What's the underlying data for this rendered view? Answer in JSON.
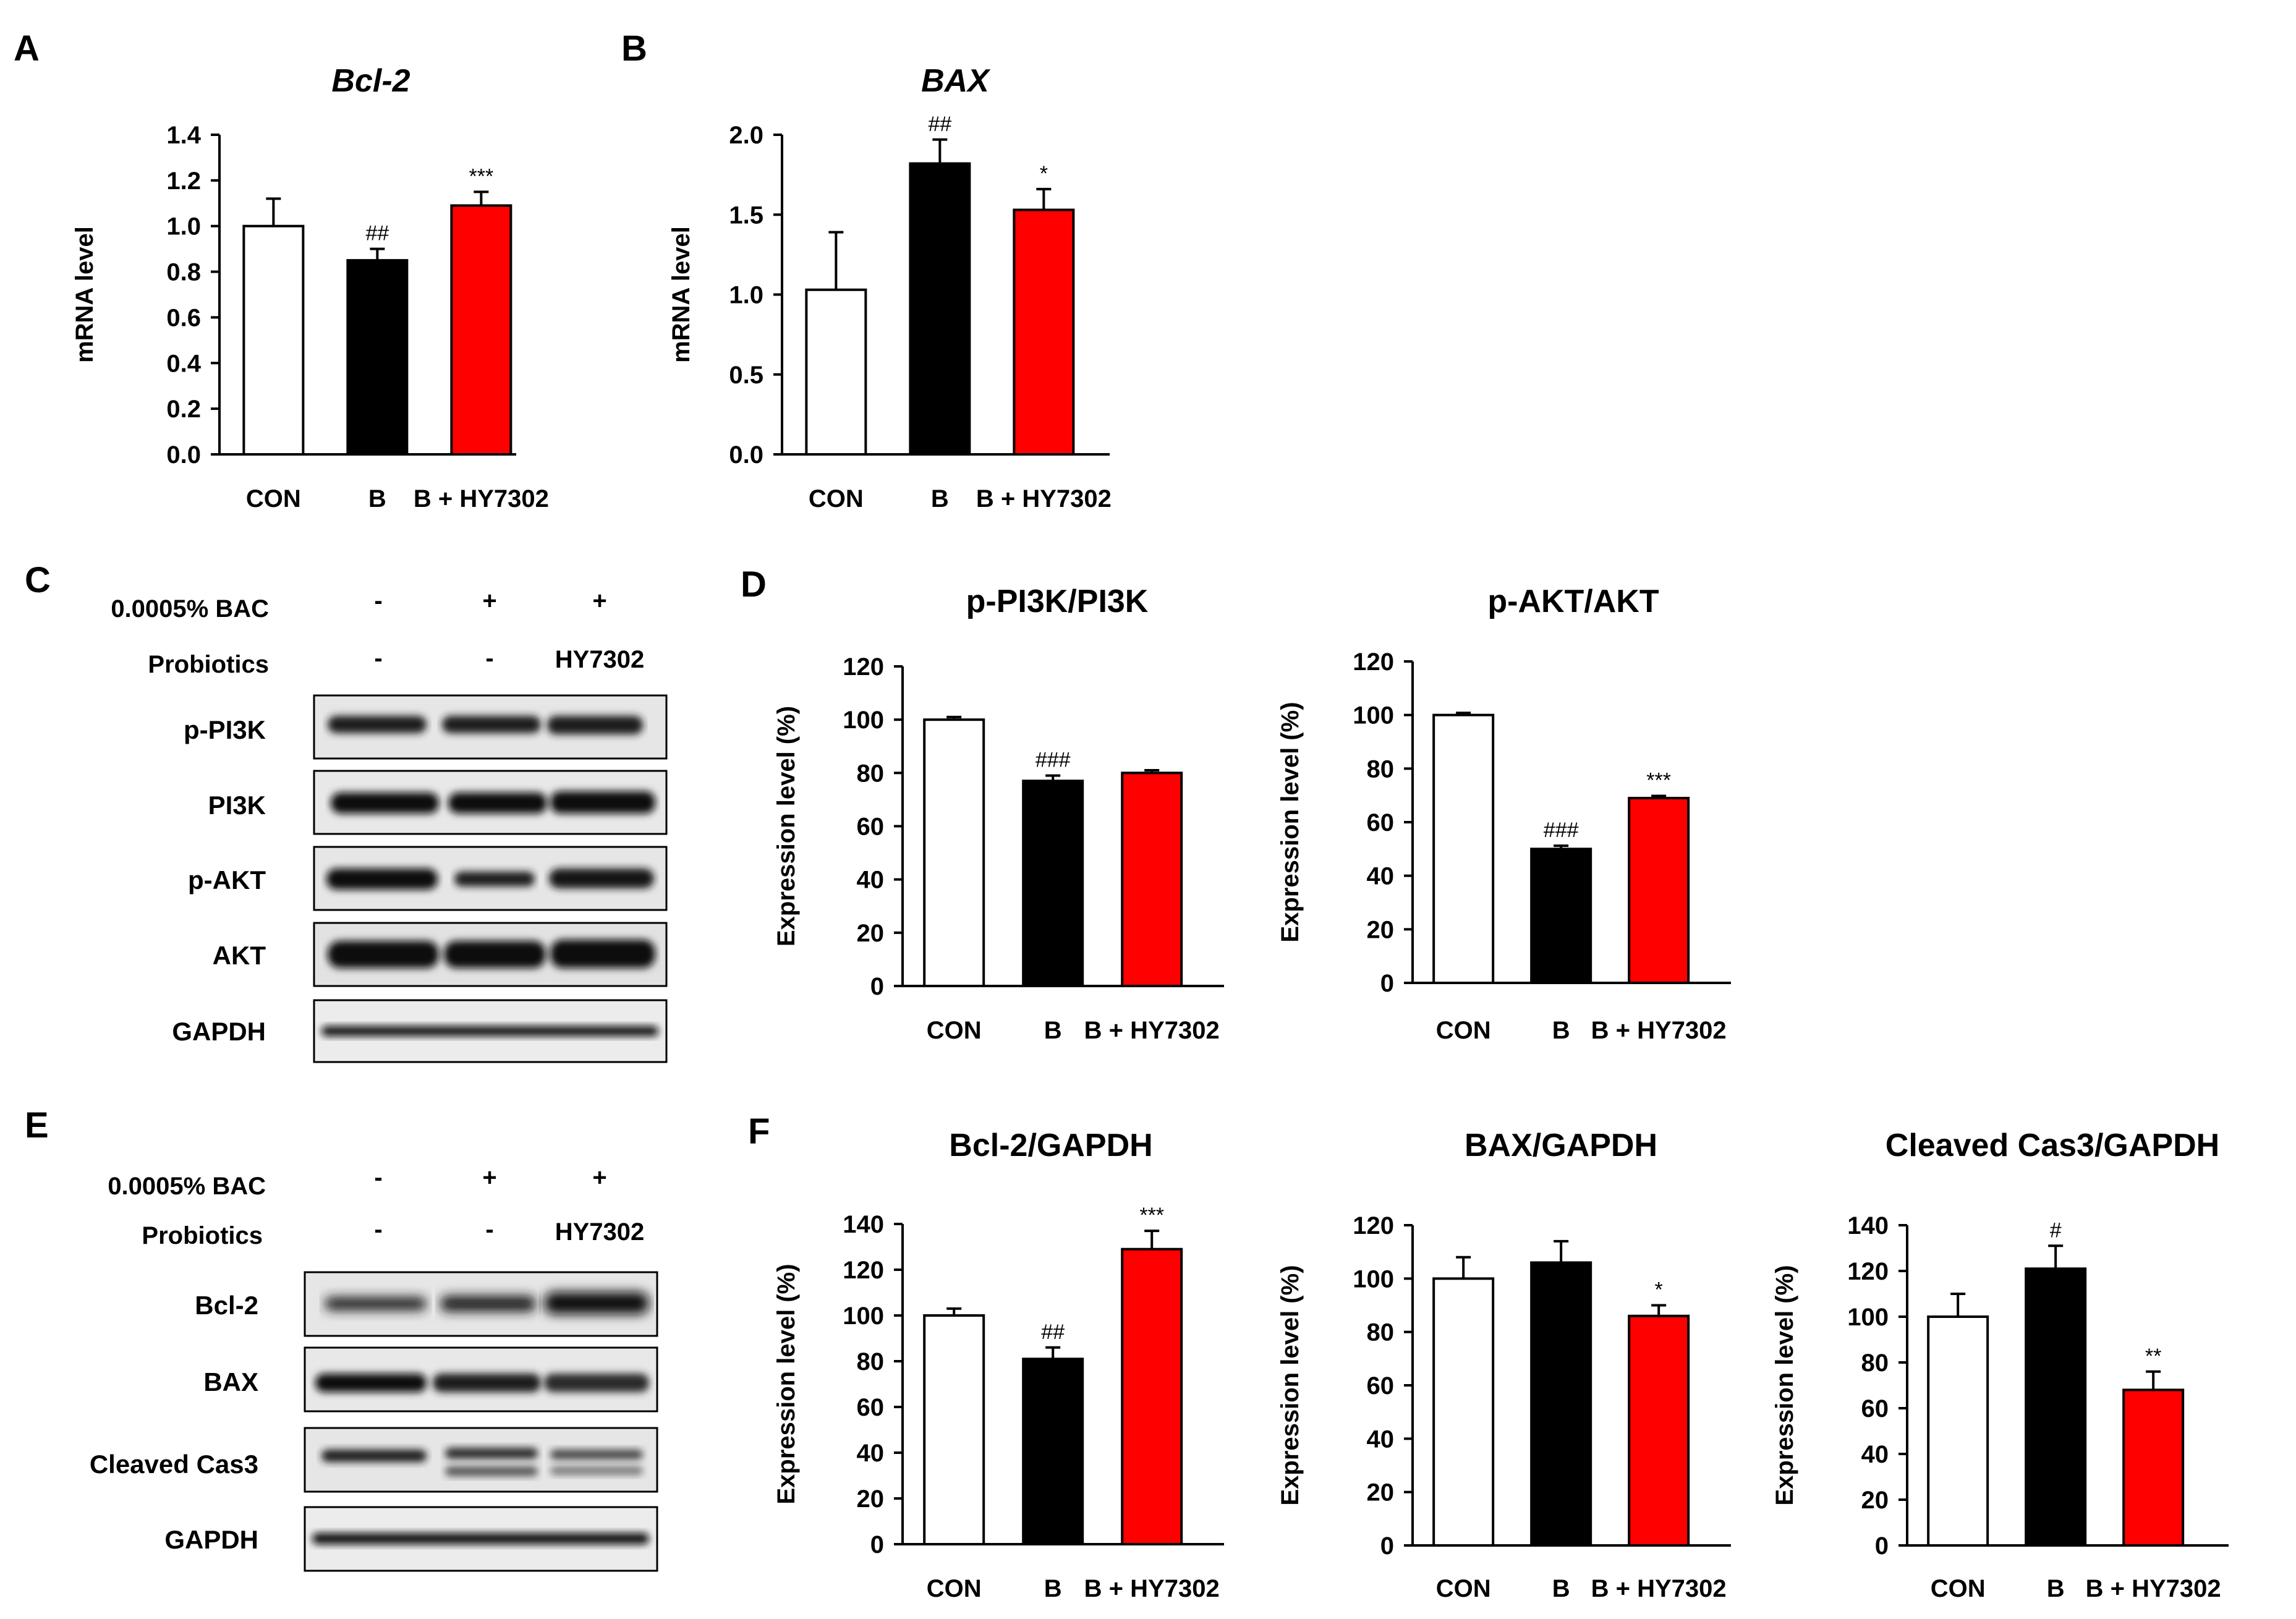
{
  "panel_letters": [
    "A",
    "B",
    "C",
    "D",
    "E",
    "F"
  ],
  "colors": {
    "con": "#ffffff",
    "b": "#000000",
    "hy": "#ff0000",
    "axis": "#000000"
  },
  "chart_data": [
    {
      "id": "a",
      "type": "bar",
      "title": "Bcl-2",
      "title_italic": true,
      "ylabel": "mRNA level",
      "categories": [
        "CON",
        "B",
        "B + HY7302"
      ],
      "values": [
        1.0,
        0.85,
        1.09
      ],
      "errors": [
        0.12,
        0.05,
        0.06
      ],
      "ylim": [
        0,
        1.4
      ],
      "yticks": [
        "0.0",
        "0.2",
        "0.4",
        "0.6",
        "0.8",
        "1.0",
        "1.2",
        "1.4"
      ],
      "annotations": [
        "",
        "##",
        "***"
      ]
    },
    {
      "id": "b",
      "type": "bar",
      "title": "BAX",
      "title_italic": true,
      "ylabel": "mRNA level",
      "categories": [
        "CON",
        "B",
        "B + HY7302"
      ],
      "values": [
        1.03,
        1.82,
        1.53
      ],
      "errors": [
        0.36,
        0.15,
        0.13
      ],
      "ylim": [
        0,
        2.0
      ],
      "yticks": [
        "0.0",
        "0.5",
        "1.0",
        "1.5",
        "2.0"
      ],
      "annotations": [
        "",
        "##",
        "*"
      ]
    },
    {
      "id": "d1",
      "type": "bar",
      "title": "p-PI3K/PI3K",
      "ylabel": "Expression level (%)",
      "categories": [
        "CON",
        "B",
        "B + HY7302"
      ],
      "values": [
        100,
        77,
        80
      ],
      "errors": [
        1,
        2,
        1
      ],
      "ylim": [
        0,
        120
      ],
      "yticks": [
        "0",
        "20",
        "40",
        "60",
        "80",
        "100",
        "120"
      ],
      "annotations": [
        "",
        "###",
        ""
      ]
    },
    {
      "id": "d2",
      "type": "bar",
      "title": "p-AKT/AKT",
      "ylabel": "Expression level (%)",
      "categories": [
        "CON",
        "B",
        "B + HY7302"
      ],
      "values": [
        100,
        50,
        69
      ],
      "errors": [
        0.8,
        1.2,
        0.8
      ],
      "ylim": [
        0,
        120
      ],
      "yticks": [
        "0",
        "20",
        "40",
        "60",
        "80",
        "100",
        "120"
      ],
      "annotations": [
        "",
        "###",
        "***"
      ]
    },
    {
      "id": "f1",
      "type": "bar",
      "title": "Bcl-2/GAPDH",
      "ylabel": "Expression level (%)",
      "categories": [
        "CON",
        "B",
        "B + HY7302"
      ],
      "values": [
        100,
        81,
        129
      ],
      "errors": [
        3,
        5,
        8
      ],
      "ylim": [
        0,
        140
      ],
      "yticks": [
        "0",
        "20",
        "40",
        "60",
        "80",
        "100",
        "120",
        "140"
      ],
      "annotations": [
        "",
        "##",
        "***"
      ]
    },
    {
      "id": "f2",
      "type": "bar",
      "title": "BAX/GAPDH",
      "ylabel": "Expression level (%)",
      "categories": [
        "CON",
        "B",
        "B + HY7302"
      ],
      "values": [
        100,
        106,
        86
      ],
      "errors": [
        8,
        8,
        4
      ],
      "ylim": [
        0,
        120
      ],
      "yticks": [
        "0",
        "20",
        "40",
        "60",
        "80",
        "100",
        "120"
      ],
      "annotations": [
        "",
        "",
        "*"
      ]
    },
    {
      "id": "f3",
      "type": "bar",
      "title": "Cleaved Cas3/GAPDH",
      "ylabel": "Expression level (%)",
      "categories": [
        "CON",
        "B",
        "B + HY7302"
      ],
      "values": [
        100,
        121,
        68
      ],
      "errors": [
        10,
        10,
        8
      ],
      "ylim": [
        0,
        140
      ],
      "yticks": [
        "0",
        "20",
        "40",
        "60",
        "80",
        "100",
        "120",
        "140"
      ],
      "annotations": [
        "",
        "#",
        "**"
      ]
    }
  ],
  "blot_c": {
    "treatment_label": "0.0005% BAC",
    "treatment_marks": [
      "-",
      "+",
      "+"
    ],
    "probiotics_label": "Probiotics",
    "probiotics_marks": [
      "-",
      "-",
      "HY7302"
    ],
    "bands": [
      "p-PI3K",
      "PI3K",
      "p-AKT",
      "AKT",
      "GAPDH"
    ]
  },
  "blot_e": {
    "treatment_label": "0.0005% BAC",
    "treatment_marks": [
      "-",
      "+",
      "+"
    ],
    "probiotics_label": "Probiotics",
    "probiotics_marks": [
      "-",
      "-",
      "HY7302"
    ],
    "bands": [
      "Bcl-2",
      "BAX",
      "Cleaved Cas3",
      "GAPDH"
    ]
  }
}
